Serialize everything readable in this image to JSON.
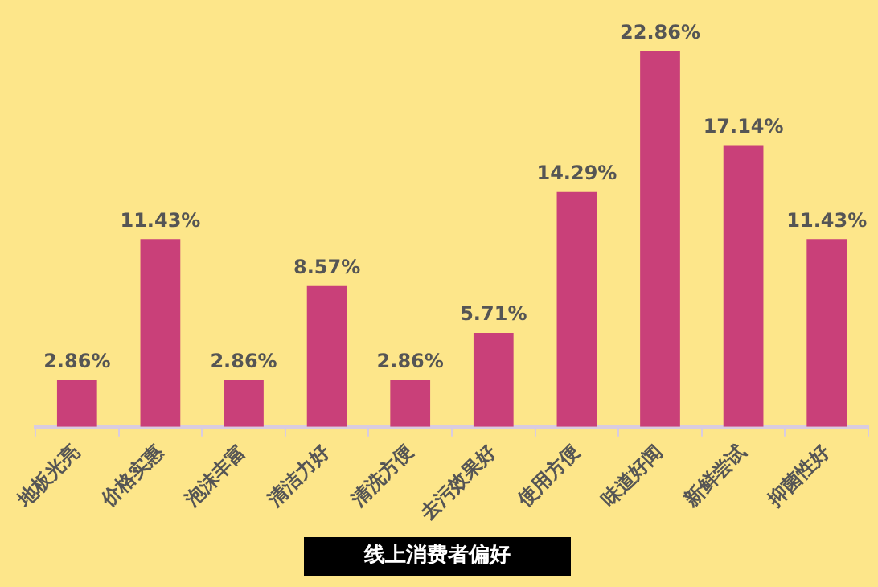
{
  "chart_data": {
    "type": "bar",
    "title": "线上消费者偏好",
    "categories": [
      "地板光亮",
      "价格实惠",
      "泡沫丰富",
      "清洁力好",
      "清洗方便",
      "去污效果好",
      "使用方便",
      "味道好闻",
      "新鲜尝试",
      "抑菌性好"
    ],
    "values": [
      2.86,
      11.43,
      2.86,
      8.57,
      2.86,
      5.71,
      14.29,
      22.86,
      17.14,
      11.43
    ],
    "value_labels": [
      "2.86%",
      "11.43%",
      "2.86%",
      "8.57%",
      "2.86%",
      "5.71%",
      "14.29%",
      "22.86%",
      "17.14%",
      "11.43%"
    ],
    "color": "#c94079",
    "grid": false,
    "legend": false,
    "tick_labels": "x"
  }
}
